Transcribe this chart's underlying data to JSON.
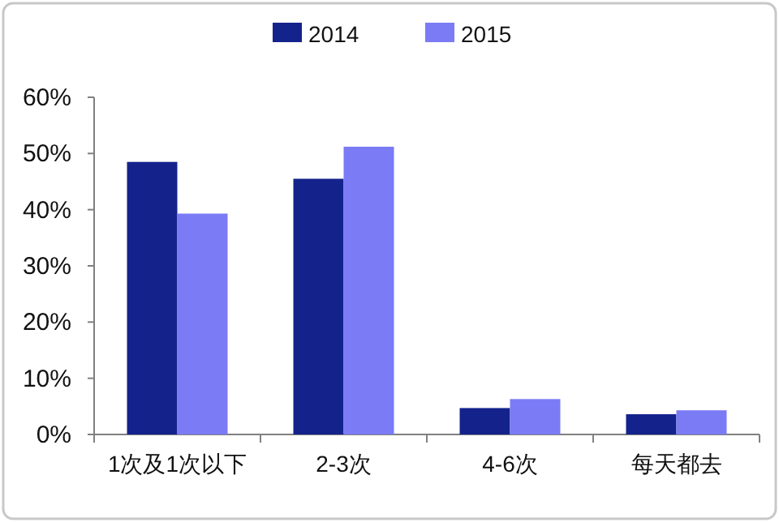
{
  "chart_data": {
    "type": "bar",
    "categories": [
      "1次及1次以下",
      "2-3次",
      "4-6次",
      "每天都去"
    ],
    "series": [
      {
        "name": "2014",
        "color": "#14238c",
        "values": [
          48.5,
          45.5,
          4.7,
          3.6
        ]
      },
      {
        "name": "2015",
        "color": "#7b7bf5",
        "values": [
          39.3,
          51.2,
          6.3,
          4.3
        ]
      }
    ],
    "ylim": [
      0,
      60
    ],
    "yticks": [
      {
        "value": 0,
        "label": "0%"
      },
      {
        "value": 10,
        "label": "10%"
      },
      {
        "value": 20,
        "label": "20%"
      },
      {
        "value": 30,
        "label": "30%"
      },
      {
        "value": 40,
        "label": "40%"
      },
      {
        "value": 50,
        "label": "50%"
      },
      {
        "value": 60,
        "label": "60%"
      }
    ],
    "legend": "top",
    "grid": false
  }
}
